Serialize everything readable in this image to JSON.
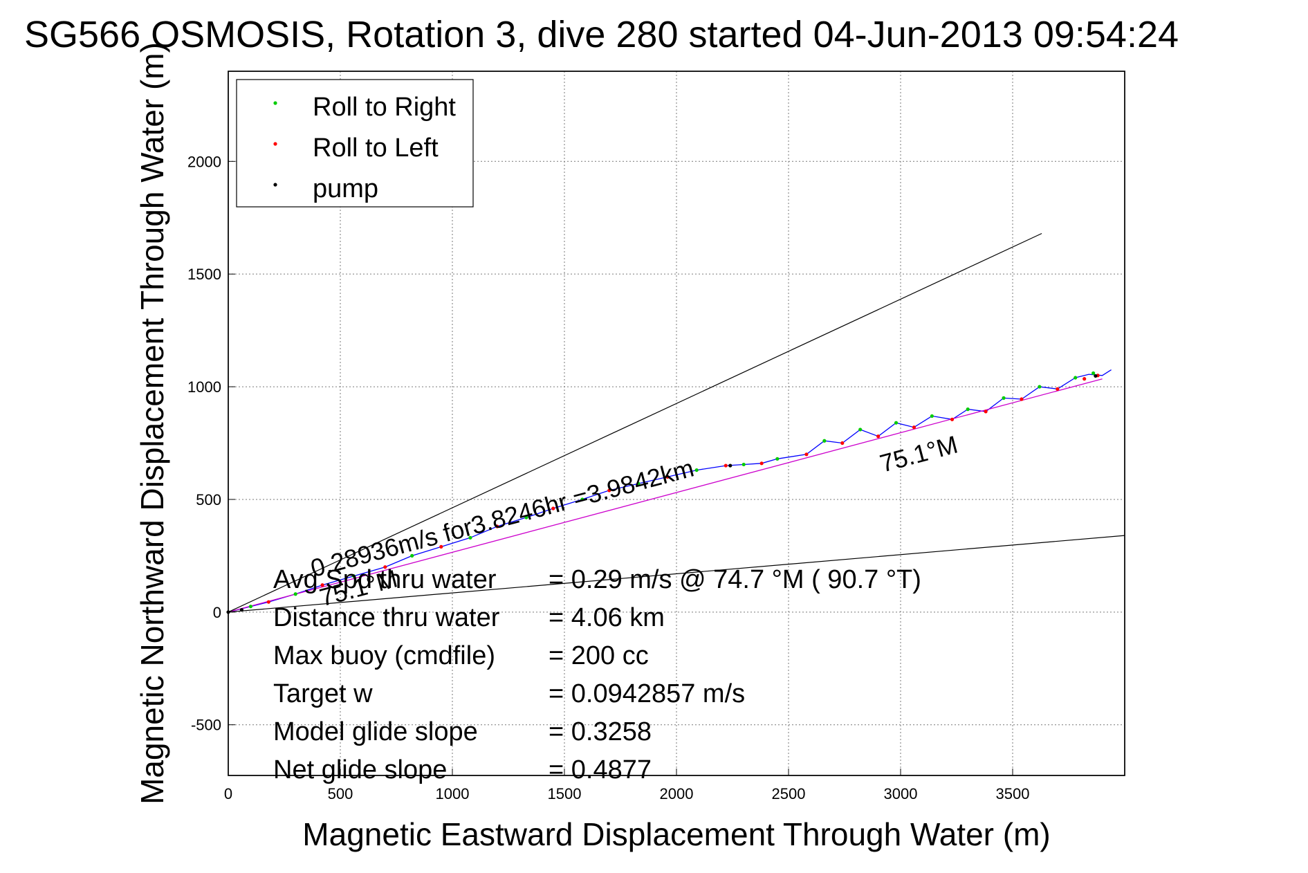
{
  "chart_data": {
    "type": "line",
    "title": "SG566 OSMOSIS, Rotation 3, dive 280 started 04-Jun-2013 09:54:24",
    "xlabel": "Magnetic Eastward Displacement Through Water (m)",
    "ylabel": "Magnetic Northward Displacement Through Water (m)",
    "xlim": [
      0,
      4000
    ],
    "ylim": [
      -725,
      2400
    ],
    "xticks": [
      0,
      500,
      1000,
      1500,
      2000,
      2500,
      3000,
      3500
    ],
    "yticks": [
      -500,
      0,
      500,
      1000,
      1500,
      2000
    ],
    "grid": true,
    "legend": {
      "placement": "top-left",
      "entries": [
        {
          "label": "Roll to Right",
          "color": "#00cc00"
        },
        {
          "label": "Roll to Left",
          "color": "#ff0000"
        },
        {
          "label": "pump",
          "color": "#000000"
        }
      ]
    },
    "colors": {
      "track": "#0000ff",
      "fit": "#cc00cc",
      "bounds": "#000000"
    },
    "series": [
      {
        "kind": "track",
        "x": [
          0,
          100,
          180,
          300,
          420,
          560,
          700,
          820,
          950,
          1080,
          1200,
          1330,
          1450,
          1580,
          1700,
          1830,
          1960,
          2090,
          2220,
          2300,
          2380,
          2450,
          2580,
          2660,
          2740,
          2820,
          2900,
          2980,
          3060,
          3140,
          3230,
          3300,
          3380,
          3460,
          3540,
          3620,
          3700,
          3780,
          3840,
          3900,
          3940
        ],
        "y": [
          0,
          25,
          45,
          80,
          120,
          160,
          200,
          250,
          290,
          330,
          380,
          420,
          460,
          500,
          540,
          570,
          600,
          630,
          650,
          655,
          660,
          680,
          700,
          760,
          750,
          810,
          780,
          840,
          820,
          870,
          855,
          900,
          890,
          950,
          945,
          1000,
          990,
          1040,
          1055,
          1050,
          1075
        ]
      },
      {
        "kind": "fit",
        "x": [
          0,
          3900
        ],
        "y": [
          0,
          1035
        ]
      },
      {
        "kind": "bound",
        "x": [
          0,
          3630
        ],
        "y": [
          0,
          1680
        ]
      },
      {
        "kind": "bound",
        "x": [
          0,
          4000
        ],
        "y": [
          0,
          340
        ]
      },
      {
        "name": "Roll to Right",
        "x": [
          100,
          300,
          560,
          820,
          1080,
          1330,
          1580,
          1830,
          2090,
          2300,
          2450,
          2660,
          2820,
          2980,
          3140,
          3300,
          3460,
          3620,
          3780,
          3860
        ],
        "y": [
          25,
          80,
          160,
          250,
          330,
          420,
          500,
          570,
          630,
          655,
          680,
          760,
          810,
          840,
          870,
          900,
          950,
          1000,
          1040,
          1060
        ]
      },
      {
        "name": "Roll to Left",
        "x": [
          180,
          420,
          700,
          950,
          1200,
          1450,
          1700,
          1960,
          2220,
          2380,
          2580,
          2740,
          2900,
          3060,
          3230,
          3380,
          3540,
          3700,
          3820,
          3880
        ],
        "y": [
          45,
          120,
          200,
          290,
          380,
          460,
          540,
          600,
          650,
          660,
          700,
          750,
          780,
          820,
          855,
          890,
          945,
          990,
          1035,
          1050
        ]
      },
      {
        "name": "pump",
        "x": [
          0,
          60,
          2240,
          3870
        ],
        "y": [
          0,
          10,
          650,
          1048
        ]
      }
    ],
    "annotations": [
      {
        "text": "75.1°M",
        "x": 2920,
        "y": 620,
        "angle": -14.9
      },
      {
        "text": "75.1°M",
        "x": 420,
        "y": 25,
        "angle": -14.9
      },
      {
        "text": "0.28936m/s for3.8246hr =3.9842km",
        "x": 380,
        "y": 155,
        "angle": -14.9
      }
    ],
    "stats": [
      {
        "label": "Avg Spd thru water",
        "value": "=  0.29 m/s @  74.7 °M ( 90.7 °T)"
      },
      {
        "label": "Distance thru water",
        "value": "=  4.06 km"
      },
      {
        "label": "Max buoy (cmdfile)",
        "value": "= 200 cc"
      },
      {
        "label": "Target w",
        "value": "= 0.0942857 m/s"
      },
      {
        "label": "Model glide slope",
        "value": "= 0.3258"
      },
      {
        "label": "Net glide slope",
        "value": "= 0.4877"
      }
    ]
  }
}
